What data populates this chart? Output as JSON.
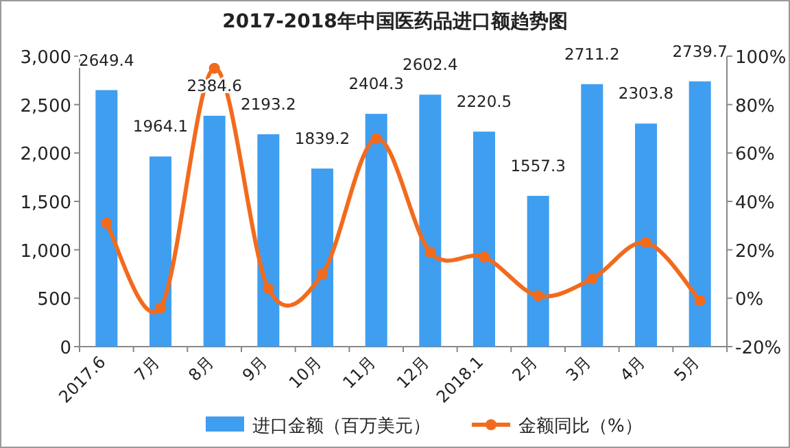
{
  "chart_data": {
    "type": "bar",
    "title": "2017-2018年中国医药品进口额趋势图",
    "categories": [
      "2017.6",
      "7月",
      "8月",
      "9月",
      "10月",
      "11月",
      "12月",
      "2018.1",
      "2月",
      "3月",
      "4月",
      "5月"
    ],
    "series": [
      {
        "name": "进口金额（百万美元）",
        "type": "bar",
        "color": "#3f9ef0",
        "values": [
          2649.4,
          1964.1,
          2384.6,
          2193.2,
          1839.2,
          2404.3,
          2602.4,
          2220.5,
          1557.3,
          2711.2,
          2303.8,
          2739.7
        ],
        "value_labels": [
          "2649.4",
          "1964.1",
          "2384.6",
          "2193.2",
          "1839.2",
          "2404.3",
          "2602.4",
          "2220.5",
          "1557.3",
          "2711.2",
          "2303.8",
          "2739.7"
        ]
      },
      {
        "name": "金额同比（%）",
        "type": "line",
        "axis": "y2",
        "color": "#f26b1d",
        "marker": "circle",
        "values": [
          31,
          -4,
          95,
          4,
          10,
          66,
          19,
          17,
          1,
          8,
          23,
          -1
        ]
      }
    ],
    "ylim": [
      0,
      3000
    ],
    "yticks": [
      {
        "value": 0,
        "label": "0"
      },
      {
        "value": 500,
        "label": "500"
      },
      {
        "value": 1000,
        "label": "1,000"
      },
      {
        "value": 1500,
        "label": "1,500"
      },
      {
        "value": 2000,
        "label": "2,000"
      },
      {
        "value": 2500,
        "label": "2,500"
      },
      {
        "value": 3000,
        "label": "3,000"
      }
    ],
    "y2lim": [
      -20,
      100
    ],
    "y2ticks": [
      {
        "value": -20,
        "label": "-20%"
      },
      {
        "value": 0,
        "label": "0%"
      },
      {
        "value": 20,
        "label": "20%"
      },
      {
        "value": 40,
        "label": "40%"
      },
      {
        "value": 60,
        "label": "60%"
      },
      {
        "value": 80,
        "label": "80%"
      },
      {
        "value": 100,
        "label": "100%"
      }
    ],
    "legend": "bottom",
    "grid": false
  }
}
